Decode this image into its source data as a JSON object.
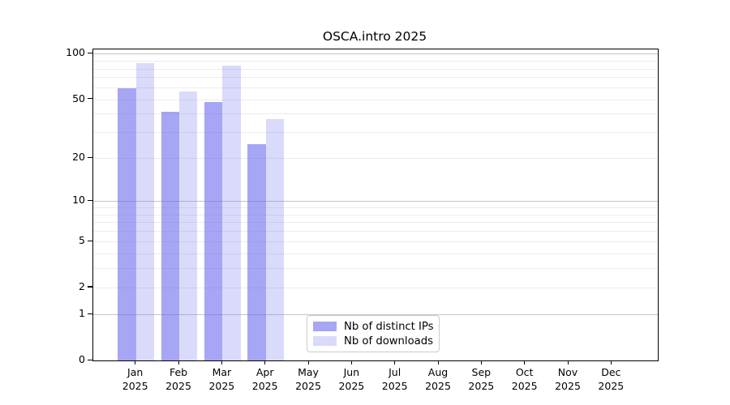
{
  "title": "OSCA.intro 2025",
  "chart_data": {
    "type": "bar",
    "title": "OSCA.intro 2025",
    "categories": [
      "Jan",
      "Feb",
      "Mar",
      "Apr",
      "May",
      "Jun",
      "Jul",
      "Aug",
      "Sep",
      "Oct",
      "Nov",
      "Dec"
    ],
    "x_year_label": "2025",
    "series": [
      {
        "name": "Nb of distinct IPs",
        "color": "rgba(102,102,238,0.58)",
        "values": [
          59,
          41,
          48,
          25,
          null,
          null,
          null,
          null,
          null,
          null,
          null,
          null
        ]
      },
      {
        "name": "Nb of downloads",
        "color": "rgba(102,102,238,0.24)",
        "values": [
          87,
          56,
          84,
          37,
          null,
          null,
          null,
          null,
          null,
          null,
          null,
          null
        ]
      }
    ],
    "xlabel": "",
    "ylabel": "",
    "yscale": "log1p",
    "ylim": [
      0,
      107
    ],
    "yticks": [
      0,
      1,
      2,
      5,
      10,
      20,
      50,
      100
    ],
    "grid": "on",
    "grid_major_lines": [
      1,
      10,
      100
    ],
    "grid_minor_lines": [
      2,
      3,
      4,
      5,
      6,
      7,
      8,
      9,
      20,
      30,
      40,
      50,
      60,
      70,
      80,
      90
    ],
    "legend_position": "lower center",
    "colors": {
      "grid_major": "#c5c5c5",
      "grid_minor": "#ececec",
      "spine": "#000000",
      "background": "#ffffff"
    }
  }
}
